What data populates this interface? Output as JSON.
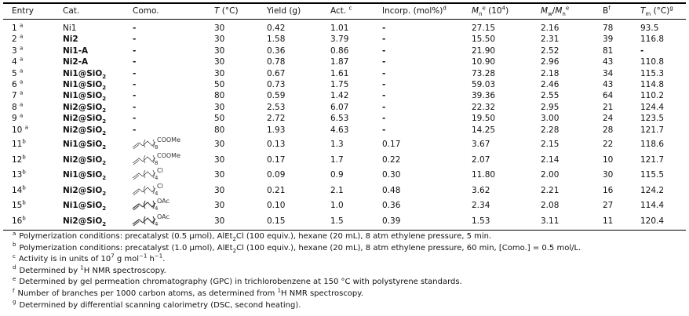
{
  "header": {
    "entry": "Entry",
    "cat": "Cat.",
    "como": "Como.",
    "T": "T",
    "T_unit": " (°C)",
    "yield": "Yield (g)",
    "act": "Act.",
    "act_sup": "c",
    "incorp": "Incorp. (mol%)",
    "incorp_sup": "d",
    "mn": "M",
    "mn_sub": "n",
    "mn_sup": "e",
    "mn_unit": " (10",
    "mn_exp": "4",
    "mn_close": ")",
    "pdi_a": "M",
    "pdi_a_sub": "w",
    "pdi_slash": "/",
    "pdi_b": "M",
    "pdi_b_sub": "n",
    "pdi_sup": "e",
    "b": "B",
    "b_sup": "f",
    "tm": "T",
    "tm_sub": "m",
    "tm_unit": " (°C)",
    "tm_sup": "g"
  },
  "rows": [
    {
      "entry": "1",
      "sup": "a",
      "cat": "Ni1",
      "cat_sub": "",
      "cat_bold": false,
      "como": "-",
      "T": "30",
      "yield": "0.42",
      "act": "1.01",
      "incorp": "-",
      "mn": "27.15",
      "pdi": "2.16",
      "b": "78",
      "tm": "93.5"
    },
    {
      "entry": "2",
      "sup": "a",
      "cat": "Ni2",
      "cat_sub": "",
      "cat_bold": true,
      "como": "-",
      "T": "30",
      "yield": "1.58",
      "act": "3.79",
      "incorp": "-",
      "mn": "15.50",
      "pdi": "2.31",
      "b": "39",
      "tm": "116.8"
    },
    {
      "entry": "3",
      "sup": "a",
      "cat": "Ni1-A",
      "cat_sub": "",
      "cat_bold": true,
      "como": "-",
      "T": "30",
      "yield": "0.36",
      "act": "0.86",
      "incorp": "-",
      "mn": "21.90",
      "pdi": "2.52",
      "b": "81",
      "tm": "-"
    },
    {
      "entry": "4",
      "sup": "a",
      "cat": "Ni2-A",
      "cat_sub": "",
      "cat_bold": true,
      "como": "-",
      "T": "30",
      "yield": "0.78",
      "act": "1.87",
      "incorp": "-",
      "mn": "10.90",
      "pdi": "2.96",
      "b": "43",
      "tm": "110.8"
    },
    {
      "entry": "5",
      "sup": "a",
      "cat": "Ni1@SiO",
      "cat_sub": "2",
      "cat_bold": true,
      "como": "-",
      "T": "30",
      "yield": "0.67",
      "act": "1.61",
      "incorp": "-",
      "mn": "73.28",
      "pdi": "2.18",
      "b": "34",
      "tm": "115.3"
    },
    {
      "entry": "6",
      "sup": "a",
      "cat": "Ni1@SiO",
      "cat_sub": "2",
      "cat_bold": true,
      "como": "-",
      "T": "50",
      "yield": "0.73",
      "act": "1.75",
      "incorp": "-",
      "mn": "59.03",
      "pdi": "2.46",
      "b": "43",
      "tm": "114.8"
    },
    {
      "entry": "7",
      "sup": "a",
      "cat": "Ni1@SiO",
      "cat_sub": "2",
      "cat_bold": true,
      "como": "-",
      "T": "80",
      "yield": "0.59",
      "act": "1.42",
      "incorp": "-",
      "mn": "39.36",
      "pdi": "2.55",
      "b": "64",
      "tm": "110.2"
    },
    {
      "entry": "8",
      "sup": "a",
      "cat": "Ni2@SiO",
      "cat_sub": "2",
      "cat_bold": true,
      "como": "-",
      "T": "30",
      "yield": "2.53",
      "act": "6.07",
      "incorp": "-",
      "mn": "22.32",
      "pdi": "2.95",
      "b": "21",
      "tm": "124.4"
    },
    {
      "entry": "9",
      "sup": "a",
      "cat": "Ni2@SiO",
      "cat_sub": "2",
      "cat_bold": true,
      "como": "-",
      "T": "50",
      "yield": "2.72",
      "act": "6.53",
      "incorp": "-",
      "mn": "19.50",
      "pdi": "3.00",
      "b": "24",
      "tm": "123.5"
    },
    {
      "entry": "10",
      "sup": "a",
      "cat": "Ni2@SiO",
      "cat_sub": "2",
      "cat_bold": true,
      "como": "-",
      "T": "80",
      "yield": "1.93",
      "act": "4.63",
      "incorp": "-",
      "mn": "14.25",
      "pdi": "2.28",
      "b": "28",
      "tm": "121.7"
    },
    {
      "entry": "11",
      "sup": "b",
      "cat": "Ni1@SiO",
      "cat_sub": "2",
      "cat_bold": true,
      "como": {
        "group": "COOMe",
        "n": "8"
      },
      "T": "30",
      "yield": "0.13",
      "act": "1.3",
      "incorp": "0.17",
      "mn": "3.67",
      "pdi": "2.15",
      "b": "22",
      "tm": "118.6"
    },
    {
      "entry": "12",
      "sup": "b",
      "cat": "Ni2@SiO",
      "cat_sub": "2",
      "cat_bold": true,
      "como": {
        "group": "COOMe",
        "n": "8"
      },
      "T": "30",
      "yield": "0.17",
      "act": "1.7",
      "incorp": "0.22",
      "mn": "2.07",
      "pdi": "2.14",
      "b": "10",
      "tm": "121.7"
    },
    {
      "entry": "13",
      "sup": "b",
      "cat": "Ni1@SiO",
      "cat_sub": "2",
      "cat_bold": true,
      "como": {
        "group": "Cl",
        "n": "4"
      },
      "T": "30",
      "yield": "0.09",
      "act": "0.9",
      "incorp": "0.30",
      "mn": "11.80",
      "pdi": "2.00",
      "b": "30",
      "tm": "115.5"
    },
    {
      "entry": "14",
      "sup": "b",
      "cat": "Ni2@SiO",
      "cat_sub": "2",
      "cat_bold": true,
      "como": {
        "group": "Cl",
        "n": "4"
      },
      "T": "30",
      "yield": "0.21",
      "act": "2.1",
      "incorp": "0.48",
      "mn": "3.62",
      "pdi": "2.21",
      "b": "16",
      "tm": "124.2"
    },
    {
      "entry": "15",
      "sup": "b",
      "cat": "Ni1@SiO",
      "cat_sub": "2",
      "cat_bold": true,
      "como": {
        "group": "OAc",
        "n": "4"
      },
      "T": "30",
      "yield": "0.10",
      "act": "1.0",
      "incorp": "0.36",
      "mn": "2.34",
      "pdi": "2.08",
      "b": "27",
      "tm": "114.4"
    },
    {
      "entry": "16",
      "sup": "b",
      "cat": "Ni2@SiO",
      "cat_sub": "2",
      "cat_bold": true,
      "como": {
        "group": "OAc",
        "n": "4"
      },
      "T": "30",
      "yield": "0.15",
      "act": "1.5",
      "incorp": "0.39",
      "mn": "1.53",
      "pdi": "3.11",
      "b": "11",
      "tm": "120.4"
    }
  ],
  "footnotes": [
    {
      "mark": "a",
      "html": "Polymerization conditions: precatalyst (0.5 μmol), AlEt<sub>2</sub>Cl (100 equiv.), hexane (20 mL), 8 atm ethylene pressure, 5 min."
    },
    {
      "mark": "b",
      "html": "Polymerization conditions: precatalyst (1.0 μmol), AlEt<sub>2</sub>Cl (100 equiv.), hexane (20 mL), 8 atm ethylene pressure, 60 min, [Como.] = 0.5 mol/L."
    },
    {
      "mark": "c",
      "html": "Activity is in units of 10<sup>7</sup> g mol<sup>−1</sup> h<sup>−1</sup>."
    },
    {
      "mark": "d",
      "html": "Determined by <sup>1</sup>H NMR spectroscopy."
    },
    {
      "mark": "e",
      "html": "Determined by gel permeation chromatography (GPC) in trichlorobenzene at 150 °C with polystyrene standards."
    },
    {
      "mark": "f",
      "html": "Number of branches per 1000 carbon atoms, as determined from <sup>1</sup>H NMR spectroscopy."
    },
    {
      "mark": "g",
      "html": "Determined by differential scanning calorimetry (DSC, second heating)."
    }
  ]
}
